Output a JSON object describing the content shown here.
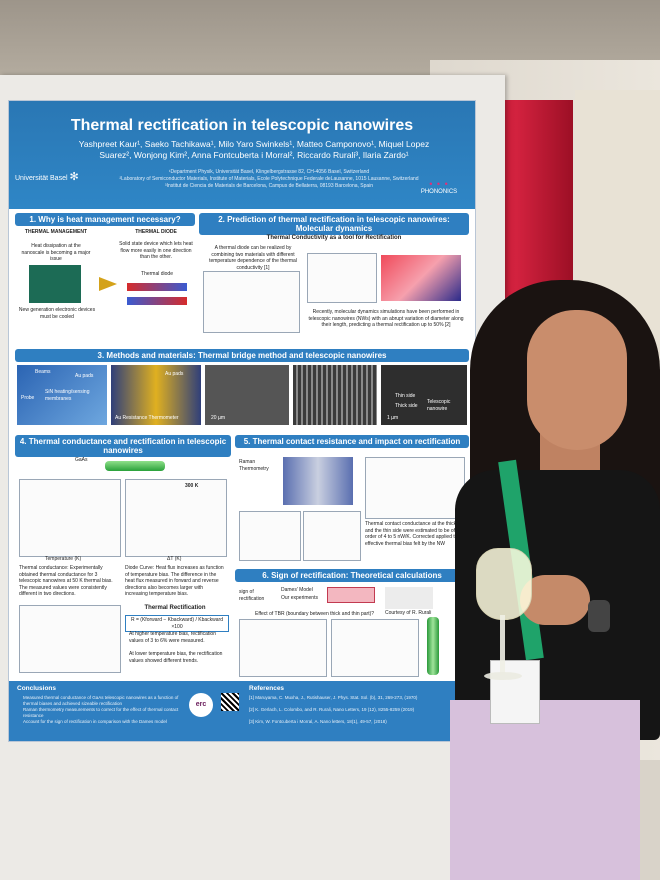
{
  "poster": {
    "title": "Thermal rectification in telescopic nanowires",
    "authors": "Yashpreet Kaur¹, Saeko Tachikawa¹, Milo Yaro Swinkels¹, Matteo Camponovo¹, Miquel Lopez Suarez², Wonjong Kim², Anna Fontcuberta i Morral², Riccardo Rurali³, Ilaria Zardo¹",
    "affiliations": [
      "¹Department Physik, Universität Basel, Klingelbergstrasse 82, CH-4056 Basel, Switzerland",
      "²Laboratory of Semiconductor Materials, Institute of Materials, Ecole Polytechnique Federale deLausanne, 1015 Lausanne, Switzerland",
      "³Institut de Ciencia de Materials de Barcelona, Campus de Bellaterra, 08193 Barcelona, Spain"
    ],
    "university_logo": "Universität Basel",
    "phononics_logo": "PHONONICS",
    "sections": {
      "s1": {
        "heading": "1. Why is heat management necessary?",
        "thermal_management": "THERMAL MANAGEMENT",
        "tm_text": "Heat dissipation at the nanoscale is becoming a major issue",
        "thermal_diode": "THERMAL DIODE",
        "td_text": "Solid state device which lets heat flow more easily in one direction than the other.",
        "electronics": "New generation electronic devices must be cooled",
        "diode_label": "Thermal diode"
      },
      "s2": {
        "heading": "2. Prediction of thermal rectification in telescopic nanowires: Molecular dynamics",
        "subheading": "Thermal Conductivity as a tool for Rectification",
        "text1": "A thermal diode can be realized by combining two materials with different temperature dependence of the thermal conductivity [1]",
        "text2": "Recently, molecular dynamics simulations have been performed in telescopic nanowires (NWs) with an abrupt variation of diameter along their length, predicting a thermal rectification up to 50% [2]"
      },
      "s3": {
        "heading": "3. Methods and materials: Thermal bridge method and telescopic nanowires",
        "labels": [
          "Beams",
          "Au pads",
          "Probe",
          "SiN heating/sensing membranes",
          "Au pads",
          "Au Resistance Thermometer",
          "20 µm",
          "Thin side",
          "Thick side",
          "Telescopic nanowire",
          "1 µm"
        ]
      },
      "s4": {
        "heading": "4. Thermal conductance and rectification in telescopic nanowires",
        "material": "GaAs",
        "temp_label": "300 K",
        "text1": "Thermal conductance: Experimentally obtained thermal conductance for 3 telescopic nanowires at 50 K thermal bias. The measured values were consistently different in two directions.",
        "text2": "Diode Curve: Heat flux increases as function of temperature bias. The difference in the heat flux measured in forward and reverse directions also becomes larger with increasing temperature bias.",
        "rect_heading": "Thermal Rectification",
        "formula": "R = (Kforward − Kbackward) / Kbackward ×100",
        "bullet1": "At higher temperature bias, rectification values of 3 to 6% were measured.",
        "bullet2": "At lower temperature bias, the rectification values showed different trends.",
        "xlabel": "Temperature (K)",
        "xlabel2": "ΔT (K)"
      },
      "s5": {
        "heading": "5. Thermal contact resistance and impact on rectification",
        "raman": "Raman Thermometry",
        "text": "Thermal contact conductance at the thick and the thin side were estimated to be of the order of 4 to 5 nW/K. Corrected applied to effective thermal bias felt by the NW"
      },
      "s6": {
        "heading": "6. Sign of rectification: Theoretical calculations",
        "dames": "Dames' Model",
        "sign": "sign of rectification",
        "ourexp": "Our experiments",
        "effect": "Effect of TBR (boundary between thick and thin part)?",
        "courtesy": "Courtesy of R. Rurali"
      }
    },
    "conclusions": {
      "heading": "Conclusions",
      "items": [
        "Measured thermal conductance of GaAs telescopic nanowires as a function of thermal biases and achieved sizeable rectification",
        "Raman thermometry measurements to correct for the effect of thermal contact resistance",
        "Account for the sign of rectification in comparison with the Dames model"
      ]
    },
    "references": {
      "heading": "References",
      "items": [
        "[1] Maruyama, C. Muxha, J., Rutishauser, J. Phys. Stat. Sol. (b), 31, 269-273, (1970)",
        "[2] K. Gerlach, L. Colombo, and R. Rurali, Nano Letters, 19 (12), 8255-8259 (2019)",
        "[3] Kim, W. Fontcuberta i Morral, A. Nano letters, 18(1), 49-57, (2018)"
      ]
    },
    "erc_logo": "erc"
  },
  "colors": {
    "poster_blue": "#2f7fc1",
    "curtain_red": "#c21a35",
    "lanyard_green": "#1fa36a",
    "pants_lilac": "#d7c1dc"
  }
}
